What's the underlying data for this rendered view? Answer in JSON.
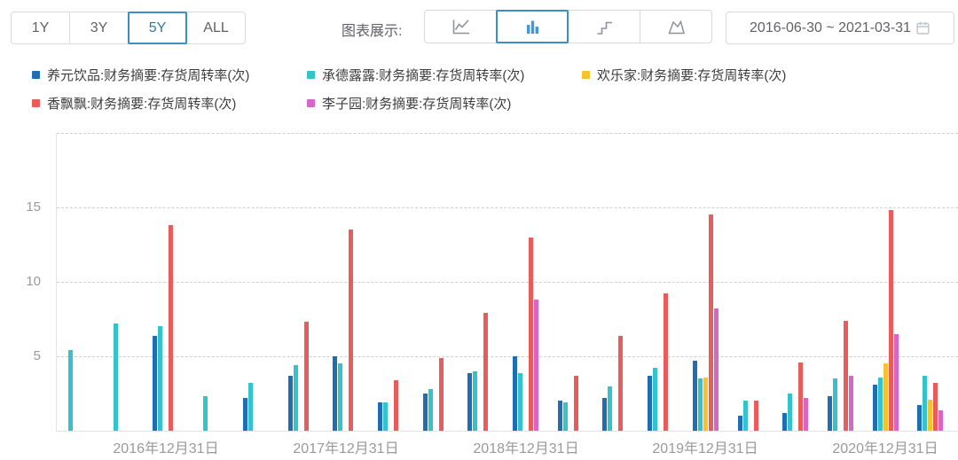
{
  "header": {
    "range_buttons": [
      {
        "label": "1Y",
        "active": false
      },
      {
        "label": "3Y",
        "active": false
      },
      {
        "label": "5Y",
        "active": true
      },
      {
        "label": "ALL",
        "active": false
      }
    ],
    "chart_display_label": "图表展示:",
    "chart_type_buttons": [
      {
        "icon": "line-chart-icon",
        "active": false
      },
      {
        "icon": "bar-chart-icon",
        "active": true
      },
      {
        "icon": "step-chart-icon",
        "active": false
      },
      {
        "icon": "area-chart-icon",
        "active": false
      }
    ],
    "date_range": "2016-06-30 ~ 2021-03-31",
    "calendar_icon": "calendar-icon"
  },
  "colors": {
    "accent_blue": "#3a8fc4",
    "series_blue": "#1f6eb4",
    "series_teal": "#34c3ca",
    "series_yellow": "#f4c32e",
    "series_red": "#e95c5c",
    "series_magenta": "#d766c8"
  },
  "legend": {
    "rows": [
      [
        {
          "label": "养元饮品:财务摘要:存货周转率(次)",
          "color": "#1f6eb4"
        },
        {
          "label": "承德露露:财务摘要:存货周转率(次)",
          "color": "#34c3ca"
        },
        {
          "label": "欢乐家:财务摘要:存货周转率(次)",
          "color": "#f4c32e"
        }
      ],
      [
        {
          "label": "香飘飘:财务摘要:存货周转率(次)",
          "color": "#e95c5c"
        },
        {
          "label": "李子园:财务摘要:存货周转率(次)",
          "color": "#d766c8"
        }
      ]
    ]
  },
  "chart_data": {
    "type": "bar",
    "title": "",
    "xlabel": "",
    "ylabel": "",
    "ylim": [
      0,
      20
    ],
    "y_ticks": [
      5,
      10,
      15
    ],
    "y_gridlines": [
      5,
      10,
      15,
      20
    ],
    "grid": "horizontal-dashed",
    "legend_position": "top",
    "categories": [
      "2016-06-30",
      "2016-09-30",
      "2016-12-31",
      "2017-03-31",
      "2017-06-30",
      "2017-09-30",
      "2017-12-31",
      "2018-03-31",
      "2018-06-30",
      "2018-09-30",
      "2018-12-31",
      "2019-03-31",
      "2019-06-30",
      "2019-09-30",
      "2019-12-31",
      "2020-03-31",
      "2020-06-30",
      "2020-09-30",
      "2020-12-31",
      "2021-03-31"
    ],
    "x_tick_labels": [
      {
        "index": 2,
        "label": "2016年12月31日"
      },
      {
        "index": 6,
        "label": "2017年12月31日"
      },
      {
        "index": 10,
        "label": "2018年12月31日"
      },
      {
        "index": 14,
        "label": "2019年12月31日"
      },
      {
        "index": 18,
        "label": "2020年12月31日"
      }
    ],
    "series": [
      {
        "name": "养元饮品:财务摘要:存货周转率(次)",
        "color": "#1f6eb4",
        "values": [
          null,
          null,
          6.4,
          null,
          2.2,
          3.7,
          5.0,
          1.9,
          2.5,
          3.9,
          5.0,
          2.0,
          2.2,
          3.7,
          4.7,
          1.0,
          1.2,
          2.3,
          3.1,
          1.7
        ]
      },
      {
        "name": "承德露露:财务摘要:存货周转率(次)",
        "color": "#34c3ca",
        "values": [
          5.4,
          7.2,
          7.0,
          2.3,
          3.2,
          4.4,
          4.5,
          1.9,
          2.8,
          4.0,
          3.9,
          1.9,
          3.0,
          4.2,
          3.5,
          2.0,
          2.5,
          3.5,
          3.6,
          3.7
        ]
      },
      {
        "name": "欢乐家:财务摘要:存货周转率(次)",
        "color": "#f4c32e",
        "values": [
          null,
          null,
          null,
          null,
          null,
          null,
          null,
          null,
          null,
          null,
          null,
          null,
          null,
          null,
          3.6,
          null,
          null,
          null,
          4.5,
          2.1
        ]
      },
      {
        "name": "香飘飘:财务摘要:存货周转率(次)",
        "color": "#e95c5c",
        "values": [
          null,
          null,
          13.8,
          null,
          null,
          7.3,
          13.5,
          3.4,
          4.9,
          7.9,
          13.0,
          3.7,
          6.4,
          9.2,
          14.5,
          2.0,
          4.6,
          7.4,
          14.8,
          3.2
        ]
      },
      {
        "name": "李子园:财务摘要:存货周转率(次)",
        "color": "#d766c8",
        "values": [
          null,
          null,
          null,
          null,
          null,
          null,
          null,
          null,
          null,
          null,
          8.8,
          null,
          null,
          null,
          8.2,
          null,
          2.2,
          3.7,
          6.5,
          1.4
        ]
      }
    ]
  }
}
